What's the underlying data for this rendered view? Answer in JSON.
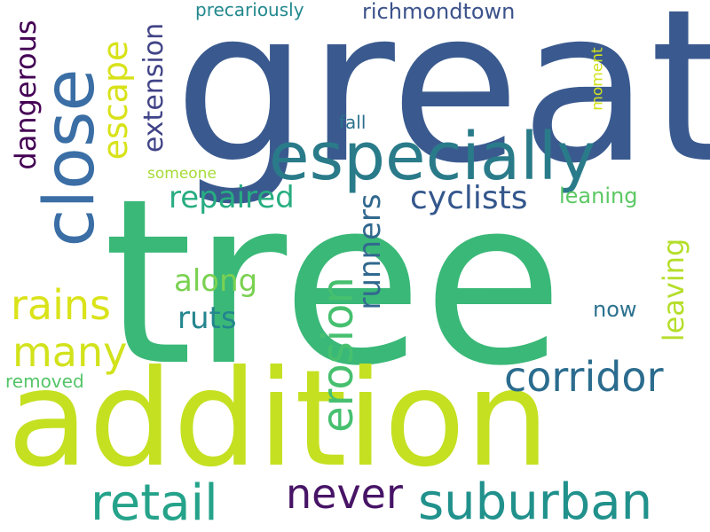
{
  "words": [
    {
      "text": "great",
      "color": "#3a5a8f"
    },
    {
      "text": "tree",
      "color": "#3ab878"
    },
    {
      "text": "addition",
      "color": "#c5e021"
    },
    {
      "text": "especially",
      "color": "#2a7b8a"
    },
    {
      "text": "suburban",
      "color": "#21918c"
    },
    {
      "text": "retail",
      "color": "#25a38a"
    },
    {
      "text": "never",
      "color": "#471466"
    },
    {
      "text": "corridor",
      "color": "#2b6c8e"
    },
    {
      "text": "many",
      "color": "#d2e21b"
    },
    {
      "text": "rains",
      "color": "#dae319"
    },
    {
      "text": "cyclists",
      "color": "#34578c"
    },
    {
      "text": "repaired",
      "color": "#27ad81"
    },
    {
      "text": "along",
      "color": "#7ad151"
    },
    {
      "text": "ruts",
      "color": "#24868e"
    },
    {
      "text": "richmondtown",
      "color": "#3b528b"
    },
    {
      "text": "leaning",
      "color": "#5cc863"
    },
    {
      "text": "now",
      "color": "#2c728e"
    },
    {
      "text": "fall",
      "color": "#2d708e"
    },
    {
      "text": "precariously",
      "color": "#23898e"
    },
    {
      "text": "someone",
      "color": "#a5db36"
    },
    {
      "text": "removed",
      "color": "#54c568"
    },
    {
      "text": "close",
      "color": "#3a6ea5"
    },
    {
      "text": "escape",
      "color": "#d8e219"
    },
    {
      "text": "dangerous",
      "color": "#440154"
    },
    {
      "text": "extension",
      "color": "#414487"
    },
    {
      "text": "erosion",
      "color": "#46c06f"
    },
    {
      "text": "runners",
      "color": "#31688e"
    },
    {
      "text": "leaving",
      "color": "#b5de2b"
    },
    {
      "text": "moment",
      "color": "#d2e21b"
    }
  ]
}
